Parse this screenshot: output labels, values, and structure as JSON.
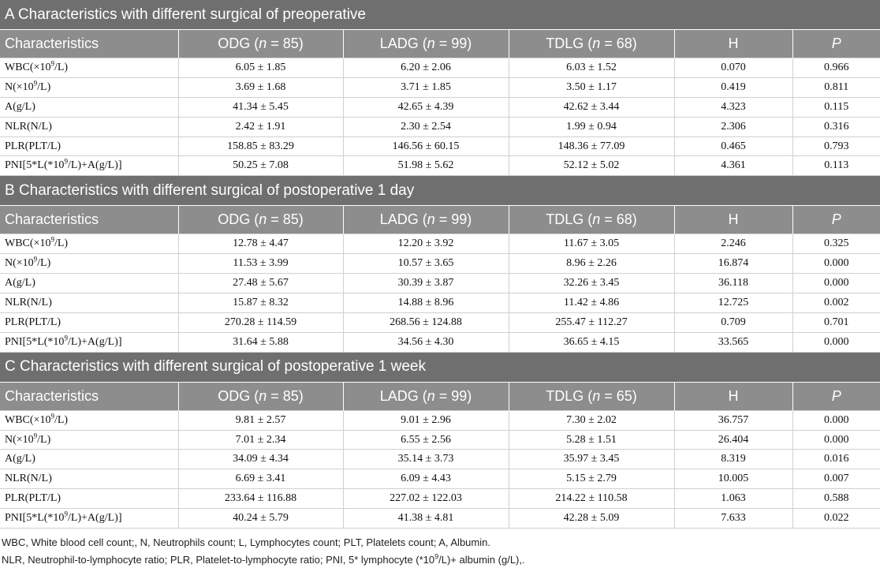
{
  "sections": [
    {
      "title": "A Characteristics with different surgical of preoperative",
      "header": [
        "Characteristics",
        [
          "ODG (",
          "n",
          " = 85)"
        ],
        [
          "LADG (",
          "n",
          " = 99)"
        ],
        [
          "TDLG (",
          "n",
          " = 68)"
        ],
        "H",
        "P"
      ],
      "rows": [
        {
          "label": [
            "WBC(×10",
            "9",
            "/L)"
          ],
          "cells": [
            "6.05 ± 1.85",
            "6.20 ± 2.06",
            "6.03 ± 1.52",
            "0.070",
            "0.966"
          ]
        },
        {
          "label": [
            "N(×10",
            "9",
            "/L)"
          ],
          "cells": [
            "3.69 ± 1.68",
            "3.71 ± 1.85",
            "3.50 ± 1.17",
            "0.419",
            "0.811"
          ]
        },
        {
          "label": "A(g/L)",
          "cells": [
            "41.34 ± 5.45",
            "42.65 ± 4.39",
            "42.62 ± 3.44",
            "4.323",
            "0.115"
          ]
        },
        {
          "label": "NLR(N/L)",
          "cells": [
            "2.42 ± 1.91",
            "2.30 ± 2.54",
            "1.99 ± 0.94",
            "2.306",
            "0.316"
          ]
        },
        {
          "label": "PLR(PLT/L)",
          "cells": [
            "158.85 ± 83.29",
            "146.56 ± 60.15",
            "148.36 ± 77.09",
            "0.465",
            "0.793"
          ]
        },
        {
          "label": [
            "PNI[5*L(*10",
            "9",
            "/L)+A(g/L)]"
          ],
          "cells": [
            "50.25 ± 7.08",
            "51.98 ± 5.62",
            "52.12 ± 5.02",
            "4.361",
            "0.113"
          ]
        }
      ]
    },
    {
      "title": "B Characteristics with different surgical of postoperative 1 day",
      "header": [
        "Characteristics",
        [
          "ODG (",
          "n",
          " = 85)"
        ],
        [
          "LADG (",
          "n",
          " = 99)"
        ],
        [
          "TDLG (",
          "n",
          " = 68)"
        ],
        "H",
        "P"
      ],
      "rows": [
        {
          "label": [
            "WBC(×10",
            "9",
            "/L)"
          ],
          "cells": [
            "12.78 ± 4.47",
            "12.20 ± 3.92",
            "11.67 ± 3.05",
            "2.246",
            "0.325"
          ]
        },
        {
          "label": [
            "N(×10",
            "9",
            "/L)"
          ],
          "cells": [
            "11.53 ± 3.99",
            "10.57 ± 3.65",
            "8.96 ± 2.26",
            "16.874",
            "0.000"
          ]
        },
        {
          "label": "A(g/L)",
          "cells": [
            "27.48 ± 5.67",
            "30.39 ± 3.87",
            "32.26 ± 3.45",
            "36.118",
            "0.000"
          ]
        },
        {
          "label": "NLR(N/L)",
          "cells": [
            "15.87 ± 8.32",
            "14.88 ± 8.96",
            "11.42 ± 4.86",
            "12.725",
            "0.002"
          ]
        },
        {
          "label": "PLR(PLT/L)",
          "cells": [
            "270.28 ± 114.59",
            "268.56 ± 124.88",
            "255.47 ± 112.27",
            "0.709",
            "0.701"
          ]
        },
        {
          "label": [
            "PNI[5*L(*10",
            "9",
            "/L)+A(g/L)]"
          ],
          "cells": [
            "31.64 ± 5.88",
            "34.56 ± 4.30",
            "36.65 ± 4.15",
            "33.565",
            "0.000"
          ]
        }
      ]
    },
    {
      "title": "C Characteristics with different surgical of postoperative 1 week",
      "header": [
        "Characteristics",
        [
          "ODG (",
          "n",
          " = 85)"
        ],
        [
          "LADG (",
          "n",
          " = 99)"
        ],
        [
          "TDLG (",
          "n",
          " = 65)"
        ],
        "H",
        "P"
      ],
      "rows": [
        {
          "label": [
            "WBC(×10",
            "9",
            "/L)"
          ],
          "cells": [
            "9.81 ± 2.57",
            "9.01 ± 2.96",
            "7.30 ± 2.02",
            "36.757",
            "0.000"
          ]
        },
        {
          "label": [
            "N(×10",
            "9",
            "/L)"
          ],
          "cells": [
            "7.01 ± 2.34",
            "6.55 ± 2.56",
            "5.28 ± 1.51",
            "26.404",
            "0.000"
          ]
        },
        {
          "label": "A(g/L)",
          "cells": [
            "34.09 ± 4.34",
            "35.14 ± 3.73",
            "35.97 ± 3.45",
            "8.319",
            "0.016"
          ]
        },
        {
          "label": "NLR(N/L)",
          "cells": [
            "6.69 ± 3.41",
            "6.09 ± 4.43",
            "5.15 ± 2.79",
            "10.005",
            "0.007"
          ]
        },
        {
          "label": "PLR(PLT/L)",
          "cells": [
            "233.64 ± 116.88",
            "227.02 ± 122.03",
            "214.22 ± 110.58",
            "1.063",
            "0.588"
          ]
        },
        {
          "label": [
            "PNI[5*L(*10",
            "9",
            "/L)+A(g/L)]"
          ],
          "cells": [
            "40.24 ± 5.79",
            "41.38 ± 4.81",
            "42.28 ± 5.09",
            "7.633",
            "0.022"
          ]
        }
      ]
    }
  ],
  "footnotes": [
    "WBC, White blood cell count;, N, Neutrophils count; L, Lymphocytes count; PLT, Platelets count; A, Albumin.",
    [
      "NLR, Neutrophil-to-lymphocyte ratio; PLR, Platelet-to-lymphocyte ratio; PNI, 5* lymphocyte (*10",
      "9",
      "/L)+ albumin (g/L),."
    ]
  ]
}
